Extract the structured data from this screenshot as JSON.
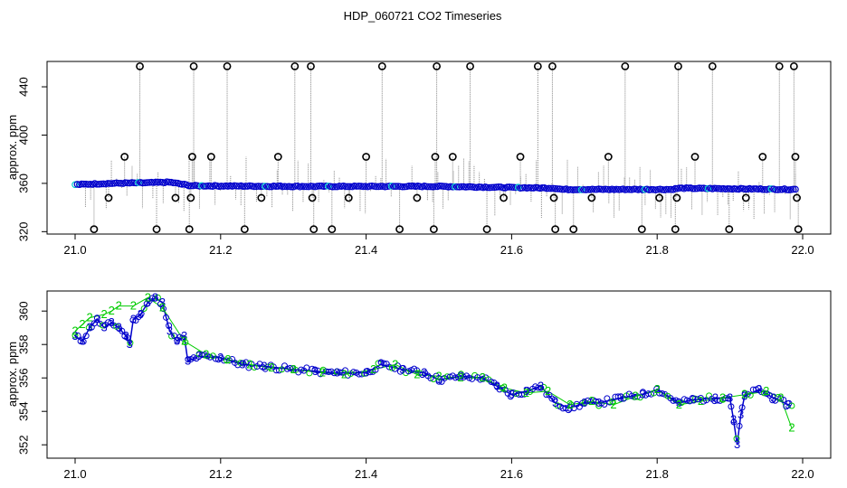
{
  "chart_data": {
    "title": "HDP_060721  CO2 Timeseries",
    "x_ticks": [
      "21.0",
      "21.2",
      "21.4",
      "21.6",
      "21.8",
      "22.0"
    ],
    "x_tick_values": [
      21.0,
      21.2,
      21.4,
      21.6,
      21.8,
      22.0
    ],
    "colors": {
      "blue": "#0000cc",
      "cyan": "#00cccc",
      "green": "#00cc00",
      "black": "#000000",
      "grey": "#888888"
    },
    "panels": [
      {
        "type": "scatter",
        "ylabel": "approx. ppm",
        "xlim": [
          20.99,
          22.04
        ],
        "ylim": [
          318,
          461
        ],
        "y_ticks": [
          "320",
          "360",
          "400",
          "440"
        ],
        "y_tick_values": [
          320,
          360,
          400,
          440
        ],
        "baseline": [
          [
            21.0,
            359
          ],
          [
            21.05,
            360
          ],
          [
            21.1,
            360.5
          ],
          [
            21.13,
            361
          ],
          [
            21.16,
            358
          ],
          [
            21.3,
            357.5
          ],
          [
            21.5,
            357.5
          ],
          [
            21.66,
            356
          ],
          [
            21.67,
            355
          ],
          [
            21.82,
            355
          ],
          [
            21.83,
            356
          ],
          [
            21.99,
            355
          ]
        ],
        "outliers": [
          [
            21.026,
            322
          ],
          [
            21.046,
            348
          ],
          [
            21.068,
            382
          ],
          [
            21.089,
            457
          ],
          [
            21.112,
            322
          ],
          [
            21.138,
            348
          ],
          [
            21.157,
            322
          ],
          [
            21.159,
            348
          ],
          [
            21.161,
            382
          ],
          [
            21.163,
            457
          ],
          [
            21.187,
            382
          ],
          [
            21.209,
            457
          ],
          [
            21.233,
            322
          ],
          [
            21.256,
            348
          ],
          [
            21.279,
            382
          ],
          [
            21.302,
            457
          ],
          [
            21.324,
            457
          ],
          [
            21.326,
            348
          ],
          [
            21.328,
            322
          ],
          [
            21.353,
            322
          ],
          [
            21.376,
            348
          ],
          [
            21.4,
            382
          ],
          [
            21.422,
            457
          ],
          [
            21.446,
            322
          ],
          [
            21.47,
            348
          ],
          [
            21.493,
            322
          ],
          [
            21.495,
            382
          ],
          [
            21.497,
            457
          ],
          [
            21.519,
            382
          ],
          [
            21.543,
            457
          ],
          [
            21.566,
            322
          ],
          [
            21.589,
            348
          ],
          [
            21.612,
            382
          ],
          [
            21.636,
            457
          ],
          [
            21.656,
            457
          ],
          [
            21.658,
            348
          ],
          [
            21.66,
            322
          ],
          [
            21.685,
            322
          ],
          [
            21.71,
            348
          ],
          [
            21.733,
            382
          ],
          [
            21.756,
            457
          ],
          [
            21.779,
            322
          ],
          [
            21.803,
            348
          ],
          [
            21.825,
            322
          ],
          [
            21.827,
            348
          ],
          [
            21.829,
            457
          ],
          [
            21.852,
            382
          ],
          [
            21.876,
            457
          ],
          [
            21.899,
            322
          ],
          [
            21.922,
            348
          ],
          [
            21.945,
            382
          ],
          [
            21.968,
            457
          ],
          [
            21.988,
            457
          ],
          [
            21.99,
            382
          ],
          [
            21.992,
            348
          ],
          [
            21.994,
            322
          ]
        ]
      },
      {
        "type": "line",
        "ylabel": "approx. ppm",
        "xlim": [
          20.99,
          22.04
        ],
        "ylim": [
          351.2,
          361.2
        ],
        "y_ticks": [
          "352",
          "354",
          "356",
          "358",
          "360"
        ],
        "y_tick_values": [
          352,
          354,
          356,
          358,
          360
        ],
        "series": [
          {
            "marker": "3",
            "color": "blue",
            "x": [
              21.0,
              21.01,
              21.02,
              21.03,
              21.04,
              21.05,
              21.06,
              21.07,
              21.075,
              21.08,
              21.09,
              21.1,
              21.11,
              21.12,
              21.13,
              21.14,
              21.15,
              21.155,
              21.17,
              21.2,
              21.23,
              21.26,
              21.3,
              21.33,
              21.36,
              21.4,
              21.42,
              21.45,
              21.48,
              21.5,
              21.53,
              21.56,
              21.58,
              21.6,
              21.62,
              21.64,
              21.66,
              21.68,
              21.7,
              21.72,
              21.75,
              21.78,
              21.8,
              21.83,
              21.85,
              21.88,
              21.9,
              21.905,
              21.91,
              21.915,
              21.92,
              21.94,
              21.96,
              21.98
            ],
            "y": [
              358.5,
              358.2,
              359.0,
              359.5,
              359.0,
              359.3,
              359.0,
              358.5,
              358.0,
              359.5,
              359.8,
              360.5,
              360.8,
              360.5,
              358.8,
              358.2,
              358.5,
              357.0,
              357.3,
              357.2,
              356.8,
              356.7,
              356.5,
              356.4,
              356.3,
              356.3,
              356.8,
              356.5,
              356.3,
              355.9,
              356.1,
              356.0,
              355.5,
              355.0,
              355.2,
              355.5,
              354.5,
              354.2,
              354.5,
              354.5,
              354.8,
              355.0,
              355.3,
              354.5,
              354.7,
              354.8,
              354.8,
              353.5,
              352.0,
              353.8,
              354.9,
              355.3,
              354.8,
              354.4
            ]
          },
          {
            "marker": "2",
            "color": "green",
            "x": [
              21.0,
              21.01,
              21.02,
              21.04,
              21.05,
              21.06,
              21.08,
              21.1,
              21.12,
              21.15,
              21.18,
              21.21,
              21.24,
              21.27,
              21.3,
              21.34,
              21.37,
              21.41,
              21.44,
              21.47,
              21.5,
              21.53,
              21.56,
              21.59,
              21.62,
              21.65,
              21.68,
              21.71,
              21.74,
              21.77,
              21.8,
              21.83,
              21.86,
              21.89,
              21.92,
              21.95,
              21.97,
              21.985
            ],
            "y": [
              358.8,
              359.2,
              359.6,
              359.8,
              360.0,
              360.3,
              360.3,
              360.8,
              360.2,
              358.2,
              357.4,
              357.1,
              356.8,
              356.6,
              356.5,
              356.3,
              356.2,
              356.5,
              356.8,
              356.2,
              356.1,
              356.0,
              356.0,
              355.4,
              355.1,
              355.2,
              354.4,
              354.6,
              354.4,
              354.9,
              355.3,
              354.4,
              354.6,
              354.8,
              355.0,
              355.2,
              354.8,
              353.0
            ]
          }
        ]
      }
    ]
  }
}
